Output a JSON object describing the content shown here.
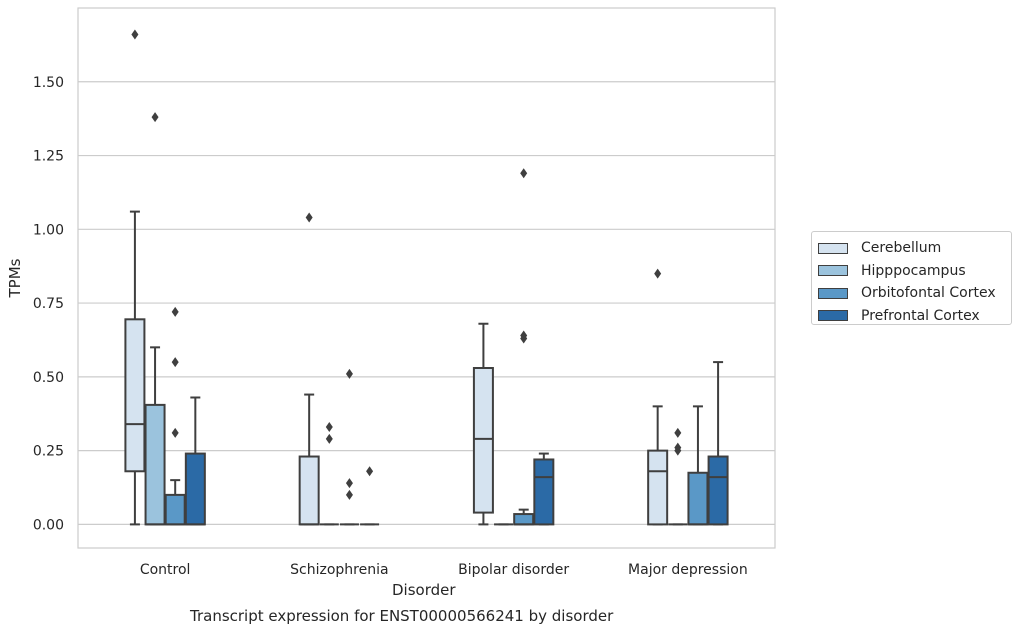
{
  "chart_data": {
    "type": "boxplot",
    "title": "Transcript expression for ENST00000566241 by disorder",
    "xlabel": "Disorder",
    "ylabel": "TPMs",
    "ylim": [
      -0.08,
      1.75
    ],
    "yticks": [
      0.0,
      0.25,
      0.5,
      0.75,
      1.0,
      1.25,
      1.5
    ],
    "ytick_labels": [
      "0.00",
      "0.25",
      "0.50",
      "0.75",
      "1.00",
      "1.25",
      "1.50"
    ],
    "grid": "horizontal",
    "legend_position": "right",
    "categories": [
      "Control",
      "Schizophrenia",
      "Bipolar disorder",
      "Major depression"
    ],
    "series": [
      {
        "name": "Cerebellum",
        "color": "#d5e3f0",
        "boxes": [
          {
            "q1": 0.18,
            "median": 0.34,
            "q3": 0.695,
            "whislo": 0.0,
            "whishi": 1.06,
            "fliers": [
              1.66
            ]
          },
          {
            "q1": 0.0,
            "median": 0.0,
            "q3": 0.23,
            "whislo": 0.0,
            "whishi": 0.44,
            "fliers": [
              1.04
            ]
          },
          {
            "q1": 0.04,
            "median": 0.29,
            "q3": 0.53,
            "whislo": 0.0,
            "whishi": 0.68,
            "fliers": []
          },
          {
            "q1": 0.0,
            "median": 0.18,
            "q3": 0.25,
            "whislo": 0.0,
            "whishi": 0.4,
            "fliers": [
              0.85
            ]
          }
        ]
      },
      {
        "name": "Hipppocampus",
        "color": "#9bc3dd",
        "boxes": [
          {
            "q1": 0.0,
            "median": 0.0,
            "q3": 0.405,
            "whislo": 0.0,
            "whishi": 0.6,
            "fliers": [
              1.38
            ]
          },
          {
            "q1": 0.0,
            "median": 0.0,
            "q3": 0.0,
            "whislo": 0.0,
            "whishi": 0.0,
            "fliers": [
              0.33,
              0.29
            ]
          },
          {
            "q1": 0.0,
            "median": 0.0,
            "q3": 0.0,
            "whislo": 0.0,
            "whishi": 0.0,
            "fliers": []
          },
          {
            "q1": 0.0,
            "median": 0.0,
            "q3": 0.0,
            "whislo": 0.0,
            "whishi": 0.0,
            "fliers": [
              0.31,
              0.26,
              0.25
            ]
          }
        ]
      },
      {
        "name": "Orbitofontal Cortex",
        "color": "#5a98c7",
        "boxes": [
          {
            "q1": 0.0,
            "median": 0.0,
            "q3": 0.1,
            "whislo": 0.0,
            "whishi": 0.15,
            "fliers": [
              0.72,
              0.55,
              0.31
            ]
          },
          {
            "q1": 0.0,
            "median": 0.0,
            "q3": 0.0,
            "whislo": 0.0,
            "whishi": 0.0,
            "fliers": [
              0.51,
              0.14,
              0.1
            ]
          },
          {
            "q1": 0.0,
            "median": 0.0,
            "q3": 0.035,
            "whislo": 0.0,
            "whishi": 0.05,
            "fliers": [
              1.19,
              0.64,
              0.63
            ]
          },
          {
            "q1": 0.0,
            "median": 0.0,
            "q3": 0.175,
            "whislo": 0.0,
            "whishi": 0.4,
            "fliers": []
          }
        ]
      },
      {
        "name": "Prefrontal Cortex",
        "color": "#2b6aa6",
        "boxes": [
          {
            "q1": 0.0,
            "median": 0.0,
            "q3": 0.24,
            "whislo": 0.0,
            "whishi": 0.43,
            "fliers": []
          },
          {
            "q1": 0.0,
            "median": 0.0,
            "q3": 0.0,
            "whislo": 0.0,
            "whishi": 0.0,
            "fliers": [
              0.18
            ]
          },
          {
            "q1": 0.0,
            "median": 0.16,
            "q3": 0.22,
            "whislo": 0.0,
            "whishi": 0.24,
            "fliers": []
          },
          {
            "q1": 0.0,
            "median": 0.16,
            "q3": 0.23,
            "whislo": 0.0,
            "whishi": 0.55,
            "fliers": []
          }
        ]
      }
    ]
  }
}
